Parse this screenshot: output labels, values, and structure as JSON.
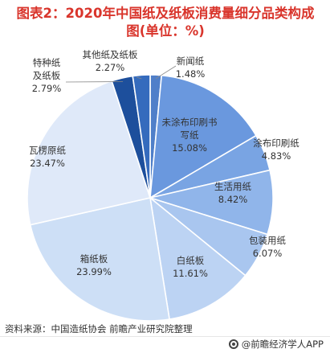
{
  "title": "图表2：2020年中国纸及纸板消费量细分品类构成图(单位：%)",
  "source_text": "资料来源：中国造纸协会 前瞻产业研究院整理",
  "brand_text": "@前瞻经济学人APP",
  "chart_data": {
    "type": "pie",
    "title": "2020年中国纸及纸板消费量细分品类构成图(单位：%)",
    "unit": "%",
    "slices": [
      {
        "name": "新闻纸",
        "value": 1.48,
        "label": "1.48%",
        "color": "#4f7fc9"
      },
      {
        "name": "未涂布印刷书写纸",
        "value": 15.08,
        "label": "15.08%",
        "color": "#6a98de"
      },
      {
        "name": "涂布印刷纸",
        "value": 4.83,
        "label": "4.83%",
        "color": "#79a4e3"
      },
      {
        "name": "生活用纸",
        "value": 8.42,
        "label": "8.42%",
        "color": "#90b5ea"
      },
      {
        "name": "包装用纸",
        "value": 6.07,
        "label": "6.07%",
        "color": "#a9c6ef"
      },
      {
        "name": "白纸板",
        "value": 11.61,
        "label": "11.61%",
        "color": "#bcd3f3"
      },
      {
        "name": "箱纸板",
        "value": 23.99,
        "label": "23.99%",
        "color": "#cddff6"
      },
      {
        "name": "瓦楞原纸",
        "value": 23.47,
        "label": "23.47%",
        "color": "#dfe9f9"
      },
      {
        "name": "特种纸及纸板",
        "value": 2.79,
        "label": "2.79%",
        "color": "#1d4f9c"
      },
      {
        "name": "其他纸及纸板",
        "value": 2.27,
        "label": "2.27%",
        "color": "#356bbd"
      }
    ]
  }
}
